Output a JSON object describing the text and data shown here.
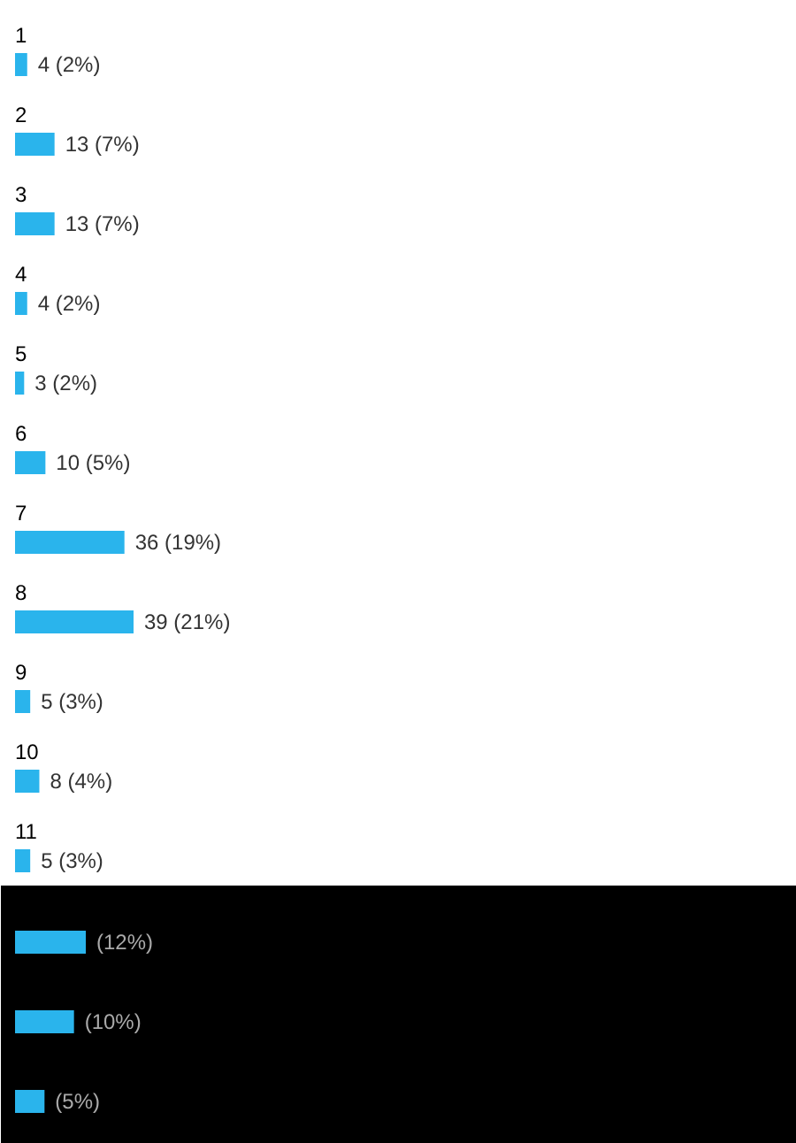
{
  "chart_data": [
    {
      "type": "bar",
      "orientation": "horizontal",
      "categories": [
        "1",
        "2",
        "3",
        "4",
        "5",
        "6",
        "7",
        "8",
        "9",
        "10",
        "11"
      ],
      "values": [
        4,
        13,
        13,
        4,
        3,
        10,
        36,
        39,
        5,
        8,
        5
      ],
      "color": "#2ab4ec",
      "value_labels": [
        "4 (2%)",
        "13 (7%)",
        "13 (7%)",
        "4 (2%)",
        "3 (2%)",
        "10 (5%)",
        "36 (19%)",
        "39 (21%)",
        "5 (3%)",
        "8 (4%)",
        "5 (3%)"
      ]
    },
    {
      "type": "bar",
      "orientation": "horizontal",
      "categories": [
        null,
        null,
        null
      ],
      "values": [
        12,
        10,
        5
      ],
      "color": "#2ab4ec",
      "value_labels": [
        "(12%)",
        "(10%)",
        "(5%)"
      ]
    }
  ]
}
